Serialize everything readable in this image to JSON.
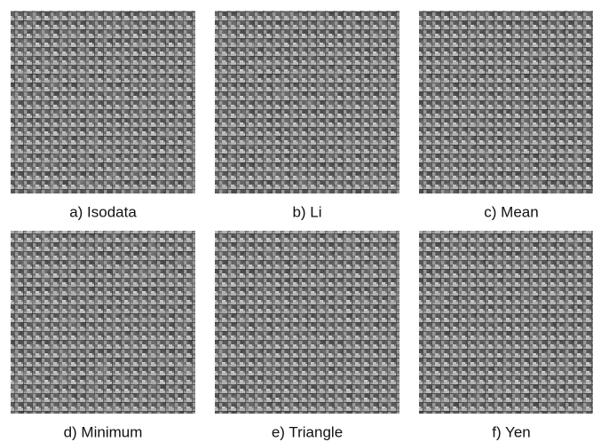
{
  "panels": [
    {
      "caption": "a) Isodata"
    },
    {
      "caption": "b) Li"
    },
    {
      "caption": "c) Mean"
    },
    {
      "caption": "d) Minimum"
    },
    {
      "caption": "e) Triangle"
    },
    {
      "caption": "f) Yen"
    }
  ]
}
